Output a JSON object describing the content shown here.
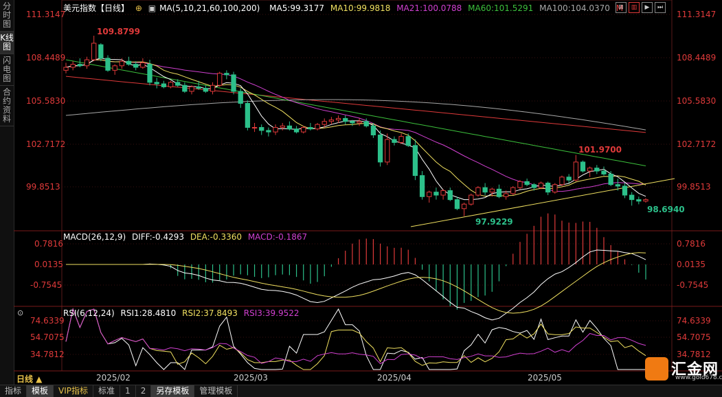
{
  "sidebar": {
    "tabs": [
      {
        "label": "分时图"
      },
      {
        "label": "K线图"
      },
      {
        "label": "闪电图"
      },
      {
        "label": "合约资料"
      }
    ]
  },
  "main_legend": {
    "title": "美元指数【日线】",
    "ma_params": "MA(5,10,21,60,100,200)",
    "ma5": "MA5:99.3177",
    "ma10": "MA10:99.9818",
    "ma21": "MA21:100.0788",
    "ma60": "MA60:101.5291",
    "ma100": "MA100:104.0370",
    "m": "M"
  },
  "macd_legend": {
    "params": "MACD(26,12,9)",
    "diff": "DIFF:-0.4293",
    "dea": "DEA:-0.3360",
    "macd": "MACD:-0.1867"
  },
  "rsi_legend": {
    "params": "RSI(6,12,24)",
    "rsi1": "RSI1:28.4810",
    "rsi2": "RSI2:37.8493",
    "rsi3": "RSI3:39.9522"
  },
  "price_axis": [
    "111.3147",
    "108.4489",
    "105.5830",
    "102.7172",
    "99.8513"
  ],
  "macd_axis": [
    "0.7816",
    "0.0135",
    "-0.7545"
  ],
  "rsi_axis": [
    "74.6339",
    "54.7075",
    "34.7812"
  ],
  "x_labels": [
    "2025/02",
    "2025/03",
    "2025/04",
    "2025/05"
  ],
  "annotations": {
    "high": "109.8799",
    "low": "97.9229",
    "last_high": "101.9700",
    "last_low": "98.6940"
  },
  "period_label": "日线 ▲",
  "bottom_tabs": [
    "指标",
    "模板",
    "VIP指标",
    "标准",
    "1",
    "2",
    "另存模板",
    "管理模板"
  ],
  "logo": {
    "text": "汇金网",
    "url": "www.gold678.com"
  },
  "colors": {
    "up": "#e03a3a",
    "down": "#2cc08a",
    "ma5": "#ffffff",
    "ma10": "#f0e060",
    "ma21": "#d040d0",
    "ma60": "#3cc03c",
    "ma100": "#a8a8a8",
    "ma200": "#e03a3a"
  },
  "chart_data": {
    "type": "candlestick",
    "x_ticks": [
      "2025/02",
      "2025/03",
      "2025/04",
      "2025/05"
    ],
    "candles": [
      [
        107.6,
        108.1,
        107.4,
        107.8
      ],
      [
        107.8,
        108.2,
        107.6,
        108.0
      ],
      [
        108.0,
        108.4,
        107.8,
        107.9
      ],
      [
        107.9,
        108.5,
        107.7,
        108.3
      ],
      [
        108.3,
        109.9,
        108.2,
        109.4
      ],
      [
        109.3,
        109.4,
        108.2,
        108.4
      ],
      [
        108.4,
        108.6,
        107.5,
        107.6
      ],
      [
        107.6,
        108.0,
        107.3,
        107.9
      ],
      [
        107.9,
        108.4,
        107.7,
        108.2
      ],
      [
        108.2,
        108.5,
        107.9,
        108.0
      ],
      [
        108.0,
        108.2,
        107.6,
        107.8
      ],
      [
        107.8,
        108.4,
        107.7,
        108.1
      ],
      [
        108.0,
        108.3,
        106.6,
        106.8
      ],
      [
        106.8,
        107.1,
        106.4,
        106.7
      ],
      [
        106.7,
        106.9,
        106.4,
        106.5
      ],
      [
        106.5,
        106.9,
        106.4,
        106.8
      ],
      [
        106.8,
        107.0,
        106.5,
        106.6
      ],
      [
        106.6,
        106.8,
        106.1,
        106.2
      ],
      [
        106.2,
        106.6,
        106.0,
        106.5
      ],
      [
        106.5,
        106.9,
        106.3,
        106.4
      ],
      [
        106.4,
        106.6,
        106.1,
        106.2
      ],
      [
        106.2,
        106.8,
        106.0,
        106.6
      ],
      [
        106.6,
        107.5,
        106.5,
        107.4
      ],
      [
        107.4,
        107.6,
        107.0,
        107.3
      ],
      [
        107.3,
        107.5,
        106.0,
        106.2
      ],
      [
        106.2,
        106.4,
        105.1,
        105.4
      ],
      [
        105.4,
        105.6,
        103.6,
        103.8
      ],
      [
        103.8,
        104.1,
        103.5,
        103.8
      ],
      [
        103.8,
        104.0,
        103.3,
        103.6
      ],
      [
        103.6,
        103.8,
        103.2,
        103.5
      ],
      [
        103.5,
        104.0,
        103.3,
        103.8
      ],
      [
        103.8,
        104.1,
        103.6,
        103.9
      ],
      [
        103.9,
        104.2,
        103.6,
        103.7
      ],
      [
        103.7,
        103.9,
        103.4,
        103.5
      ],
      [
        103.5,
        103.9,
        103.4,
        103.8
      ],
      [
        103.8,
        104.1,
        103.6,
        103.7
      ],
      [
        103.7,
        104.1,
        103.6,
        104.0
      ],
      [
        104.0,
        104.4,
        103.8,
        104.2
      ],
      [
        104.2,
        104.5,
        104.0,
        104.3
      ],
      [
        104.3,
        104.6,
        104.1,
        104.4
      ],
      [
        104.4,
        104.6,
        104.0,
        104.2
      ],
      [
        104.2,
        104.3,
        103.9,
        104.1
      ],
      [
        104.1,
        104.4,
        103.9,
        104.2
      ],
      [
        104.2,
        104.4,
        103.8,
        103.9
      ],
      [
        103.9,
        104.1,
        103.1,
        103.3
      ],
      [
        103.3,
        103.6,
        101.2,
        101.5
      ],
      [
        101.5,
        103.4,
        101.3,
        103.0
      ],
      [
        103.0,
        103.2,
        102.6,
        102.8
      ],
      [
        102.8,
        103.4,
        102.7,
        103.2
      ],
      [
        103.2,
        103.4,
        102.5,
        102.6
      ],
      [
        102.6,
        103.0,
        100.3,
        100.6
      ],
      [
        100.6,
        100.9,
        99.0,
        99.2
      ],
      [
        99.2,
        99.6,
        98.8,
        99.5
      ],
      [
        99.5,
        99.8,
        99.0,
        99.3
      ],
      [
        99.3,
        99.7,
        99.0,
        99.6
      ],
      [
        99.6,
        99.8,
        98.9,
        99.0
      ],
      [
        99.0,
        99.2,
        98.3,
        98.4
      ],
      [
        98.4,
        98.8,
        97.9,
        98.7
      ],
      [
        98.7,
        99.4,
        98.6,
        99.3
      ],
      [
        99.3,
        99.9,
        99.2,
        99.8
      ],
      [
        99.8,
        100.1,
        99.3,
        99.5
      ],
      [
        99.5,
        99.8,
        99.2,
        99.7
      ],
      [
        99.7,
        100.0,
        99.1,
        99.2
      ],
      [
        99.2,
        99.6,
        99.0,
        99.4
      ],
      [
        99.4,
        99.9,
        99.3,
        99.8
      ],
      [
        99.8,
        100.3,
        99.7,
        100.2
      ],
      [
        100.2,
        100.4,
        99.9,
        100.0
      ],
      [
        100.0,
        100.1,
        99.6,
        99.8
      ],
      [
        99.8,
        100.2,
        99.7,
        100.1
      ],
      [
        100.1,
        100.2,
        99.3,
        99.5
      ],
      [
        99.5,
        100.1,
        99.4,
        100.0
      ],
      [
        100.0,
        100.6,
        99.9,
        100.5
      ],
      [
        100.5,
        100.7,
        100.1,
        100.3
      ],
      [
        100.3,
        101.97,
        100.2,
        101.5
      ],
      [
        101.5,
        101.6,
        100.8,
        100.9
      ],
      [
        100.9,
        101.2,
        100.5,
        101.1
      ],
      [
        101.1,
        101.3,
        100.7,
        100.9
      ],
      [
        100.9,
        101.2,
        100.6,
        100.7
      ],
      [
        100.7,
        100.9,
        99.9,
        100.0
      ],
      [
        100.0,
        100.4,
        99.6,
        99.9
      ],
      [
        99.9,
        100.1,
        99.1,
        99.3
      ],
      [
        99.3,
        99.5,
        98.6,
        99.0
      ],
      [
        99.0,
        99.2,
        98.69,
        98.9
      ],
      [
        98.9,
        99.1,
        98.8,
        99.0
      ]
    ],
    "trendline": {
      "from_price": 97.2,
      "to_price": 100.4
    },
    "macd_histogram_sign": "negative-then-positive-then-negative",
    "rsi_levels": [
      74.6339,
      54.7075,
      34.7812
    ]
  }
}
